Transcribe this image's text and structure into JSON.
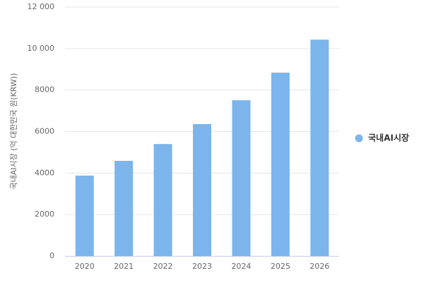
{
  "chart_data": {
    "type": "bar",
    "y_label": "국내AI시장 (억 대한민국 원(KRW))",
    "categories": [
      "2020",
      "2021",
      "2022",
      "2023",
      "2024",
      "2025",
      "2026"
    ],
    "series": [
      {
        "name": "국내AI시장",
        "color": "#7cb5ec",
        "values": [
          3880,
          4590,
          5400,
          6360,
          7510,
          8840,
          10430
        ]
      }
    ],
    "ylim": [
      0,
      12000
    ],
    "yticks": [
      0,
      2000,
      4000,
      6000,
      8000,
      {
        "value": 10000,
        "label": "10 000"
      },
      {
        "value": 12000,
        "label": "12 000"
      }
    ],
    "grid": true,
    "legend": "right"
  }
}
